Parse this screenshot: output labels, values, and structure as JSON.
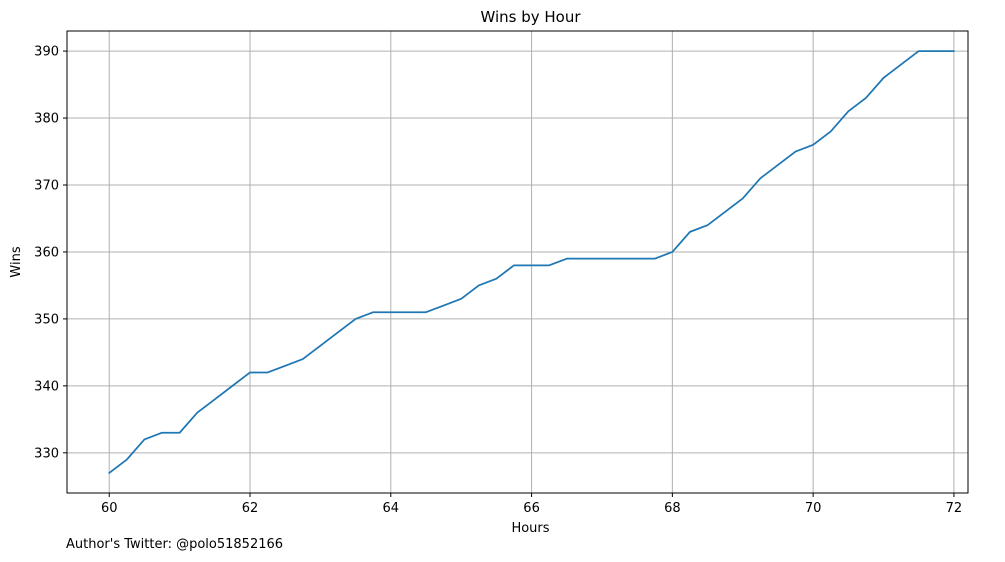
{
  "chart_data": {
    "type": "line",
    "title": "Wins by Hour",
    "xlabel": "Hours",
    "ylabel": "Wins",
    "xlim": [
      59.4,
      72.2
    ],
    "ylim": [
      324,
      393
    ],
    "xticks": [
      60,
      62,
      64,
      66,
      68,
      70,
      72
    ],
    "yticks": [
      330,
      340,
      350,
      360,
      370,
      380,
      390
    ],
    "grid": true,
    "series": [
      {
        "color": "#1f77b4",
        "x": [
          60,
          60.25,
          60.5,
          60.75,
          61,
          61.25,
          61.5,
          61.75,
          62,
          62.25,
          62.5,
          62.75,
          63,
          63.25,
          63.5,
          63.75,
          64,
          64.25,
          64.5,
          64.75,
          65,
          65.25,
          65.5,
          65.75,
          66,
          66.25,
          66.5,
          66.75,
          67,
          67.25,
          67.5,
          67.75,
          68,
          68.25,
          68.5,
          68.75,
          69,
          69.25,
          69.5,
          69.75,
          70,
          70.25,
          70.5,
          70.75,
          71,
          71.25,
          71.5,
          71.75,
          72
        ],
        "y": [
          327,
          329,
          332,
          333,
          333,
          336,
          338,
          340,
          342,
          342,
          343,
          344,
          346,
          348,
          350,
          351,
          351,
          351,
          351,
          352,
          353,
          355,
          356,
          358,
          358,
          358,
          359,
          359,
          359,
          359,
          359,
          359,
          360,
          363,
          364,
          366,
          368,
          371,
          373,
          375,
          376,
          378,
          381,
          383,
          386,
          388,
          390,
          390,
          390
        ]
      }
    ]
  },
  "footer": {
    "text": "Author's Twitter: @polo51852166"
  }
}
